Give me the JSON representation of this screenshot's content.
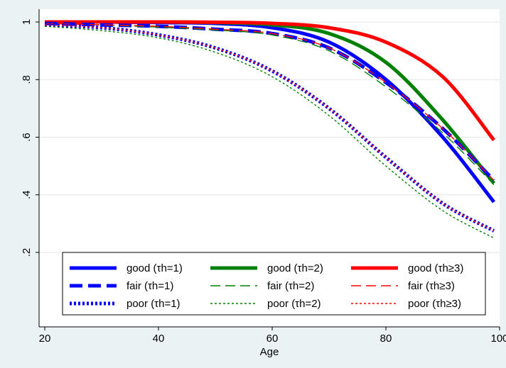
{
  "chart_data": {
    "type": "line",
    "xlabel": "Age",
    "ylabel": "",
    "xlim": [
      19,
      100
    ],
    "ylim": [
      0.2,
      1.0
    ],
    "x_ticks": [
      20,
      40,
      60,
      80,
      100
    ],
    "x_tick_labels": [
      "20",
      "40",
      "60",
      "80",
      "100"
    ],
    "y_ticks": [
      0.2,
      0.4,
      0.6,
      0.8,
      1.0
    ],
    "y_tick_labels": [
      ".2",
      ".4",
      ".6",
      ".8",
      "1"
    ],
    "grid": "horizontal",
    "legend_placement": "bottom-inside",
    "x": [
      20,
      30,
      40,
      50,
      60,
      70,
      80,
      90,
      99
    ],
    "series": [
      {
        "name": "good (τh=1)",
        "color": "#0000ff",
        "style": "solid-thick",
        "values": [
          1.0,
          1.0,
          0.998,
          0.995,
          0.98,
          0.93,
          0.8,
          0.6,
          0.375
        ]
      },
      {
        "name": "good (τh=2)",
        "color": "#008000",
        "style": "solid-thick",
        "values": [
          1.0,
          1.0,
          1.0,
          0.998,
          0.99,
          0.96,
          0.86,
          0.66,
          0.44
        ]
      },
      {
        "name": "good (τh≥3)",
        "color": "#ff0000",
        "style": "solid-thick",
        "values": [
          1.0,
          1.0,
          1.0,
          0.999,
          0.995,
          0.98,
          0.93,
          0.81,
          0.59
        ]
      },
      {
        "name": "fair (τh=1)",
        "color": "#0000ff",
        "style": "dash-thick",
        "values": [
          0.995,
          0.99,
          0.985,
          0.975,
          0.96,
          0.91,
          0.79,
          0.63,
          0.45
        ]
      },
      {
        "name": "fair (τh=2)",
        "color": "#008000",
        "style": "dash-thin",
        "values": [
          0.995,
          0.99,
          0.982,
          0.972,
          0.955,
          0.9,
          0.775,
          0.615,
          0.435
        ]
      },
      {
        "name": "fair (τh≥3)",
        "color": "#ff0000",
        "style": "dash-thin",
        "values": [
          0.995,
          0.99,
          0.985,
          0.975,
          0.96,
          0.91,
          0.79,
          0.63,
          0.45
        ]
      },
      {
        "name": "poor (τh=1)",
        "color": "#0000ff",
        "style": "dot-thick",
        "values": [
          0.99,
          0.98,
          0.955,
          0.91,
          0.83,
          0.7,
          0.53,
          0.37,
          0.275
        ]
      },
      {
        "name": "poor (τh=2)",
        "color": "#008000",
        "style": "dot-thin",
        "values": [
          0.985,
          0.97,
          0.945,
          0.895,
          0.81,
          0.675,
          0.5,
          0.345,
          0.25
        ]
      },
      {
        "name": "poor (τh≥3)",
        "color": "#ff0000",
        "style": "dot-thin",
        "values": [
          0.99,
          0.98,
          0.955,
          0.91,
          0.83,
          0.7,
          0.53,
          0.37,
          0.275
        ]
      }
    ]
  }
}
